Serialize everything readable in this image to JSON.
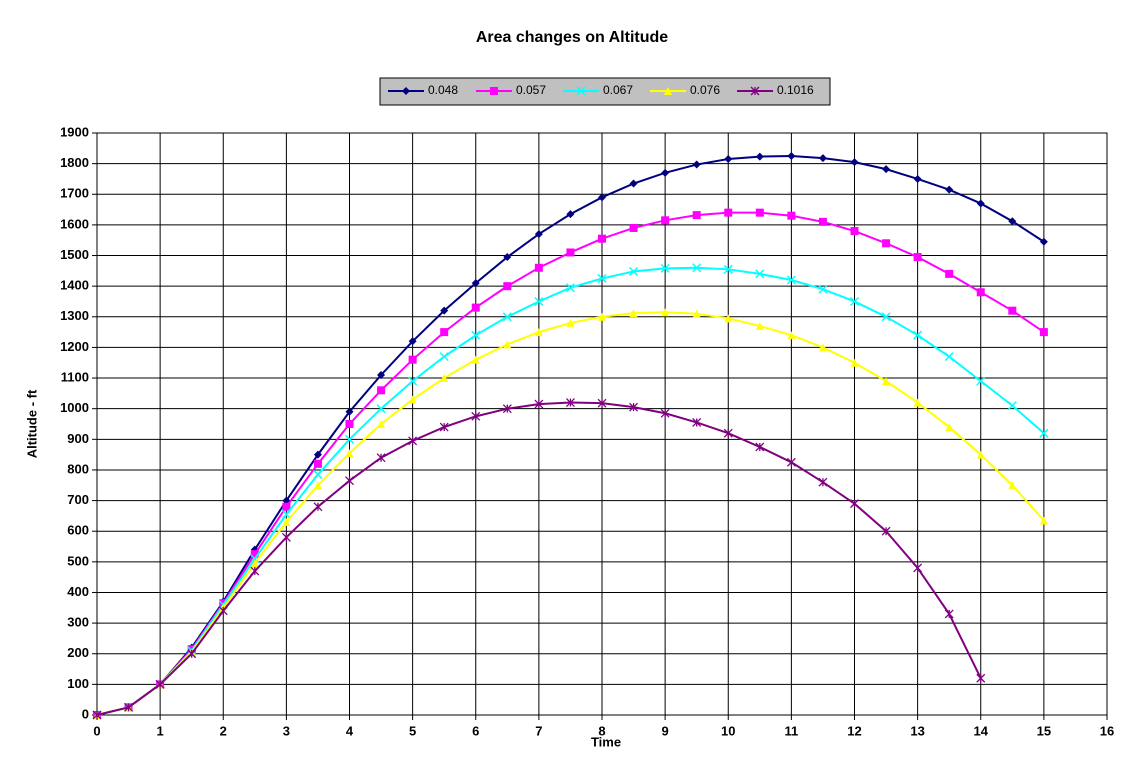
{
  "chart_data": {
    "type": "line",
    "title": "Area changes on Altitude",
    "x_label": "Time",
    "y_label": "Altitude - ft",
    "x": [
      0,
      0.5,
      1,
      1.5,
      2,
      2.5,
      3,
      3.5,
      4,
      4.5,
      5,
      5.5,
      6,
      6.5,
      7,
      7.5,
      8,
      8.5,
      9,
      9.5,
      10,
      10.5,
      11,
      11.5,
      12,
      12.5,
      13,
      13.5,
      14,
      14.5,
      15
    ],
    "series": [
      {
        "name": "0.048",
        "color": "#000080",
        "marker": "diamond",
        "values": [
          0,
          25,
          100,
          220,
          370,
          540,
          700,
          850,
          990,
          1110,
          1220,
          1320,
          1410,
          1495,
          1570,
          1635,
          1690,
          1735,
          1770,
          1797,
          1815,
          1823,
          1825,
          1818,
          1805,
          1782,
          1750,
          1715,
          1670,
          1612,
          1545
        ]
      },
      {
        "name": "0.057",
        "color": "#ff00ff",
        "marker": "square",
        "values": [
          0,
          25,
          100,
          215,
          365,
          525,
          680,
          820,
          950,
          1060,
          1160,
          1250,
          1330,
          1400,
          1460,
          1510,
          1555,
          1590,
          1615,
          1632,
          1640,
          1640,
          1630,
          1610,
          1580,
          1540,
          1495,
          1440,
          1380,
          1320,
          1250
        ]
      },
      {
        "name": "0.067",
        "color": "#00ffff",
        "marker": "x",
        "values": [
          0,
          25,
          100,
          210,
          360,
          510,
          655,
          785,
          900,
          1000,
          1090,
          1170,
          1240,
          1300,
          1350,
          1395,
          1425,
          1448,
          1458,
          1460,
          1455,
          1440,
          1420,
          1390,
          1350,
          1300,
          1240,
          1170,
          1090,
          1010,
          920
        ]
      },
      {
        "name": "0.076",
        "color": "#ffff00",
        "marker": "triangle",
        "values": [
          0,
          25,
          100,
          205,
          350,
          495,
          630,
          750,
          855,
          950,
          1030,
          1100,
          1160,
          1210,
          1250,
          1280,
          1300,
          1312,
          1315,
          1310,
          1295,
          1270,
          1240,
          1200,
          1150,
          1090,
          1020,
          940,
          850,
          750,
          635
        ]
      },
      {
        "name": "0.1016",
        "color": "#800080",
        "marker": "asterisk",
        "values": [
          0,
          25,
          100,
          200,
          340,
          470,
          580,
          680,
          765,
          840,
          895,
          940,
          975,
          1000,
          1015,
          1020,
          1018,
          1005,
          985,
          955,
          920,
          875,
          825,
          760,
          690,
          600,
          480,
          330,
          120,
          null,
          null
        ]
      }
    ],
    "xlim": [
      0,
      16
    ],
    "xticks": [
      0,
      1,
      2,
      3,
      4,
      5,
      6,
      7,
      8,
      9,
      10,
      11,
      12,
      13,
      14,
      15,
      16
    ],
    "ylim": [
      0,
      1900
    ],
    "yticks": [
      0,
      100,
      200,
      300,
      400,
      500,
      600,
      700,
      800,
      900,
      1000,
      1100,
      1200,
      1300,
      1400,
      1500,
      1600,
      1700,
      1800,
      1900
    ],
    "grid": true,
    "legend": "top"
  }
}
